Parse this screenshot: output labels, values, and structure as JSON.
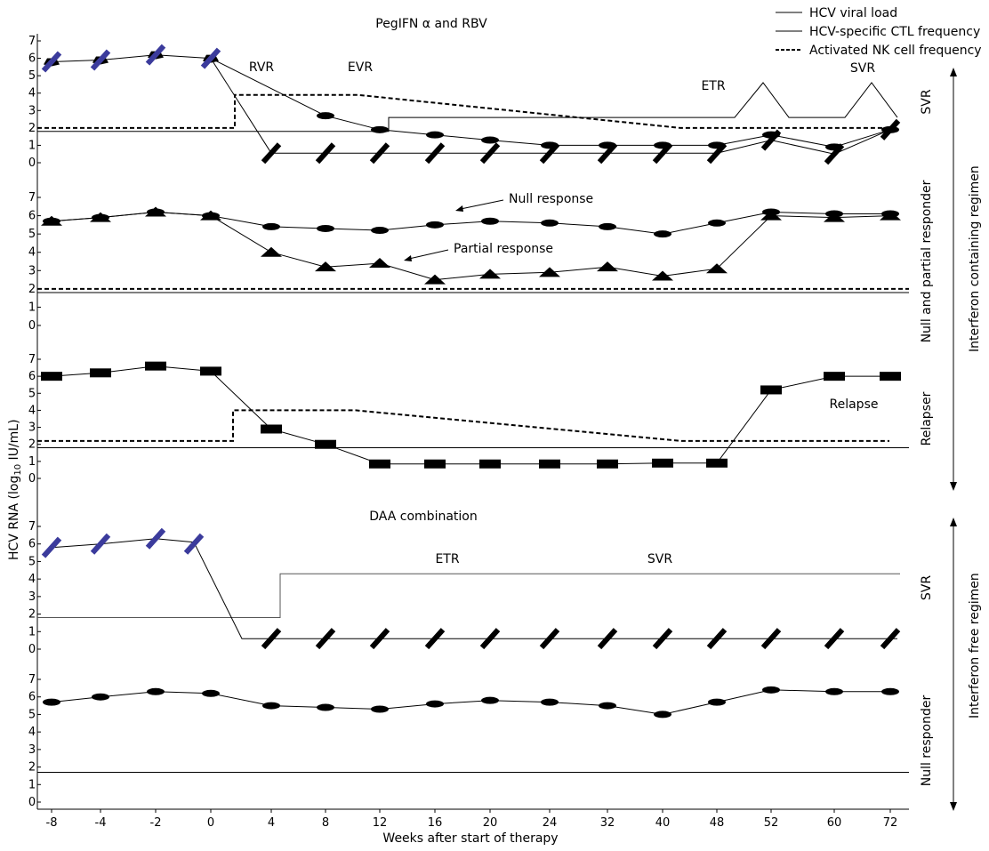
{
  "legend": {
    "viral": "HCV viral load",
    "ctl": "HCV-specific CTL frequency",
    "nk": "Activated NK cell frequency"
  },
  "axes": {
    "ylabel": "HCV RNA (log10 IU/mL)",
    "ylabel_main": "HCV RNA (log",
    "ylabel_sub": "10",
    "ylabel_end": " IU/mL)",
    "xlabel": "Weeks after start of therapy"
  },
  "regimens": {
    "interferon": "Interferon containing regimen",
    "free": "Interferon free regimen"
  },
  "chart_data": {
    "type": "line",
    "x": [
      "-8",
      "-4",
      "-2",
      "0",
      "4",
      "8",
      "12",
      "16",
      "20",
      "24",
      "32",
      "40",
      "48",
      "52",
      "60",
      "72"
    ],
    "ylim": [
      0,
      7
    ],
    "yticks": [
      "0",
      "1",
      "2",
      "3",
      "4",
      "5",
      "6",
      "7"
    ],
    "panels": [
      {
        "title": "PegIFN α and RBV",
        "side_label": "SVR",
        "annotations": [
          "RVR",
          "EVR",
          "ETR",
          "SVR"
        ],
        "viral_load_svr": [
          5.8,
          5.9,
          6.2,
          6.0,
          2.7,
          1.9,
          1.6,
          1.3,
          1.0,
          1.0,
          1.0,
          1.0,
          1.6,
          0.9,
          1.9
        ],
        "viral_load_svr_x": [
          "-8",
          "-4",
          "-2",
          "0",
          "8",
          "12",
          "16",
          "20",
          "24",
          "32",
          "40",
          "48",
          "52",
          "60",
          "72"
        ],
        "viral_load_undetectable": [
          0.55,
          0.55,
          0.55,
          0.55,
          0.55,
          0.55,
          0.55,
          0.55,
          0.55,
          1.3,
          0.5,
          1.9
        ],
        "viral_load_undetectable_x": [
          "4",
          "8",
          "12",
          "16",
          "20",
          "24",
          "32",
          "40",
          "48",
          "52",
          "60",
          "72"
        ],
        "ctl": [
          1.8,
          1.8,
          1.8,
          1.8,
          1.8,
          1.8,
          2.6,
          2.6,
          2.6,
          2.6,
          2.6,
          2.6,
          4.6,
          2.6,
          2.6,
          4.6,
          2.6
        ],
        "nk": [
          2.0,
          2.0,
          3.9,
          3.9,
          3.6,
          2.0,
          2.0
        ]
      },
      {
        "side_label": "Null and partial responder",
        "annotations": [
          "Null response",
          "Partial response"
        ],
        "null_response": [
          5.7,
          5.9,
          6.2,
          6.0,
          5.4,
          5.3,
          5.2,
          5.5,
          5.7,
          5.6,
          5.4,
          5.0,
          5.6,
          6.2,
          6.1,
          6.1
        ],
        "partial_response": [
          5.7,
          5.9,
          6.2,
          6.0,
          4.0,
          3.2,
          3.4,
          2.5,
          2.8,
          2.9,
          3.2,
          2.7,
          3.1,
          6.0,
          5.9,
          6.0
        ],
        "ctl": 1.8,
        "nk": 2.0
      },
      {
        "side_label": "Relapser",
        "annotations": [
          "Relapse"
        ],
        "viral_load": [
          6.0,
          6.2,
          6.6,
          6.3,
          2.9,
          2.0,
          0.85,
          0.85,
          0.85,
          0.85,
          0.85,
          0.9,
          0.9,
          5.2,
          6.0,
          6.0
        ],
        "ctl": 1.8,
        "nk": [
          2.2,
          2.2,
          4.0,
          4.0,
          3.5,
          2.2,
          2.2
        ]
      },
      {
        "title": "DAA combination",
        "side_label": "SVR",
        "annotations": [
          "ETR",
          "SVR"
        ],
        "viral_load": [
          5.8,
          6.0,
          6.3,
          6.0,
          0.6,
          0.6,
          0.6,
          0.6,
          0.6,
          0.6,
          0.6,
          0.6,
          0.6,
          0.6,
          0.6,
          0.6
        ],
        "ctl": [
          1.8,
          1.8,
          1.8,
          1.8,
          4.3,
          4.3,
          4.3,
          4.3,
          4.3,
          4.3,
          4.3,
          4.3,
          4.3,
          4.3,
          4.3,
          4.3
        ]
      },
      {
        "side_label": "Null responder",
        "viral_load": [
          5.7,
          6.0,
          6.3,
          6.2,
          5.5,
          5.4,
          5.3,
          5.6,
          5.8,
          5.7,
          5.5,
          5.0,
          5.7,
          6.4,
          6.3,
          6.3
        ],
        "ctl": 1.7
      }
    ]
  }
}
